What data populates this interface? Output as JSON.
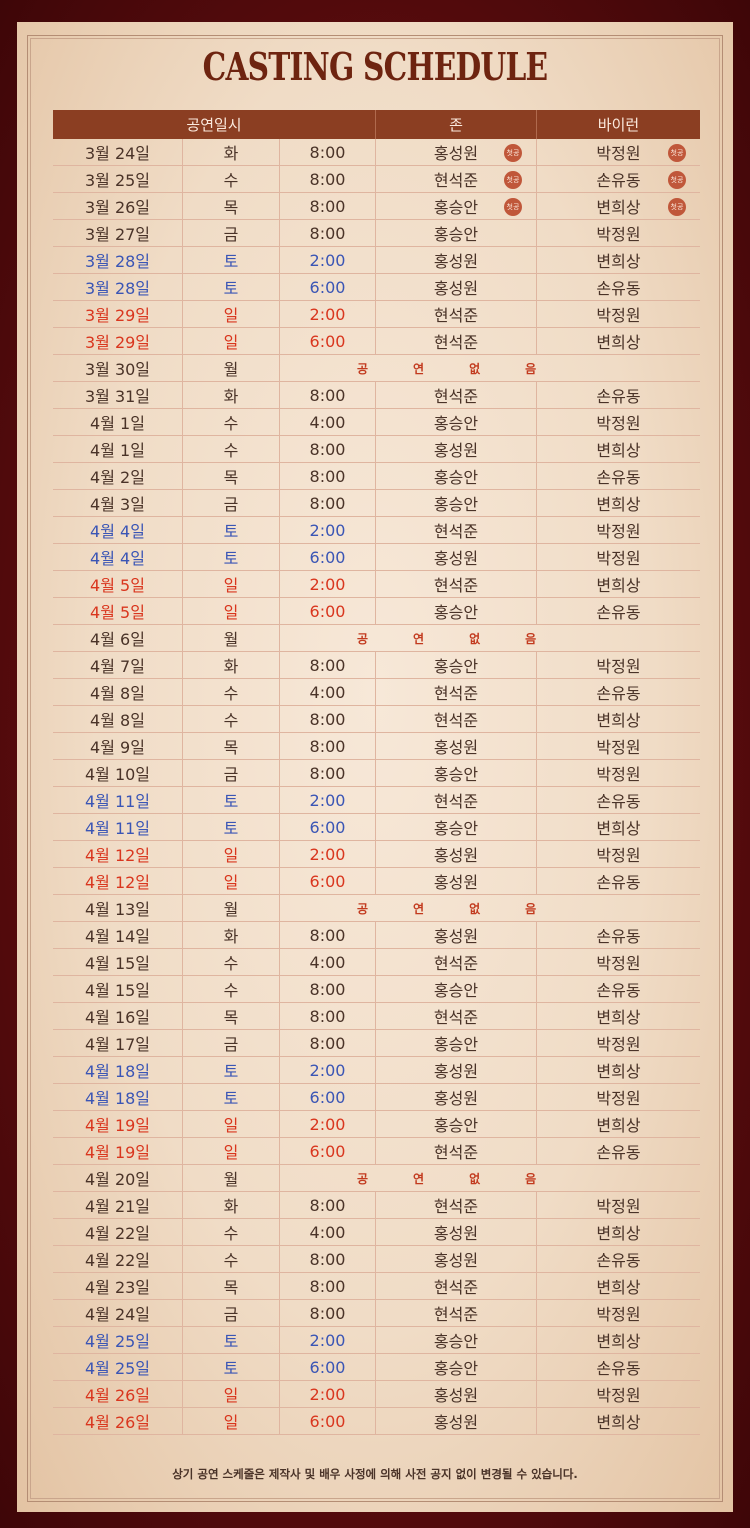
{
  "title": "CASTING SCHEDULE",
  "headers": [
    "공연일시",
    "존",
    "바이런"
  ],
  "no_show_label": "공연없음",
  "premiere_badge": "첫공",
  "colors": {
    "weekday": "#4a3328",
    "saturday": "#3a55b5",
    "sunday": "#d9361e",
    "header_bg": "#8b3e22",
    "badge": "#c0573a"
  },
  "rows": [
    {
      "date": "3월 24일",
      "day": "화",
      "time": "8:00",
      "john": "홍성원",
      "byron": "박정원",
      "premiere": true
    },
    {
      "date": "3월 25일",
      "day": "수",
      "time": "8:00",
      "john": "현석준",
      "byron": "손유동",
      "premiere": true
    },
    {
      "date": "3월 26일",
      "day": "목",
      "time": "8:00",
      "john": "홍승안",
      "byron": "변희상",
      "premiere": true
    },
    {
      "date": "3월 27일",
      "day": "금",
      "time": "8:00",
      "john": "홍승안",
      "byron": "박정원"
    },
    {
      "date": "3월 28일",
      "day": "토",
      "time": "2:00",
      "john": "홍성원",
      "byron": "변희상"
    },
    {
      "date": "3월 28일",
      "day": "토",
      "time": "6:00",
      "john": "홍성원",
      "byron": "손유동"
    },
    {
      "date": "3월 29일",
      "day": "일",
      "time": "2:00",
      "john": "현석준",
      "byron": "박정원"
    },
    {
      "date": "3월 29일",
      "day": "일",
      "time": "6:00",
      "john": "현석준",
      "byron": "변희상"
    },
    {
      "date": "3월 30일",
      "day": "월",
      "none": true
    },
    {
      "date": "3월 31일",
      "day": "화",
      "time": "8:00",
      "john": "현석준",
      "byron": "손유동"
    },
    {
      "date": "4월 1일",
      "day": "수",
      "time": "4:00",
      "john": "홍승안",
      "byron": "박정원"
    },
    {
      "date": "4월 1일",
      "day": "수",
      "time": "8:00",
      "john": "홍성원",
      "byron": "변희상"
    },
    {
      "date": "4월 2일",
      "day": "목",
      "time": "8:00",
      "john": "홍승안",
      "byron": "손유동"
    },
    {
      "date": "4월 3일",
      "day": "금",
      "time": "8:00",
      "john": "홍승안",
      "byron": "변희상"
    },
    {
      "date": "4월 4일",
      "day": "토",
      "time": "2:00",
      "john": "현석준",
      "byron": "박정원"
    },
    {
      "date": "4월 4일",
      "day": "토",
      "time": "6:00",
      "john": "홍성원",
      "byron": "박정원"
    },
    {
      "date": "4월 5일",
      "day": "일",
      "time": "2:00",
      "john": "현석준",
      "byron": "변희상"
    },
    {
      "date": "4월 5일",
      "day": "일",
      "time": "6:00",
      "john": "홍승안",
      "byron": "손유동"
    },
    {
      "date": "4월 6일",
      "day": "월",
      "none": true
    },
    {
      "date": "4월 7일",
      "day": "화",
      "time": "8:00",
      "john": "홍승안",
      "byron": "박정원"
    },
    {
      "date": "4월 8일",
      "day": "수",
      "time": "4:00",
      "john": "현석준",
      "byron": "손유동"
    },
    {
      "date": "4월 8일",
      "day": "수",
      "time": "8:00",
      "john": "현석준",
      "byron": "변희상"
    },
    {
      "date": "4월 9일",
      "day": "목",
      "time": "8:00",
      "john": "홍성원",
      "byron": "박정원"
    },
    {
      "date": "4월 10일",
      "day": "금",
      "time": "8:00",
      "john": "홍승안",
      "byron": "박정원"
    },
    {
      "date": "4월 11일",
      "day": "토",
      "time": "2:00",
      "john": "현석준",
      "byron": "손유동"
    },
    {
      "date": "4월 11일",
      "day": "토",
      "time": "6:00",
      "john": "홍승안",
      "byron": "변희상"
    },
    {
      "date": "4월 12일",
      "day": "일",
      "time": "2:00",
      "john": "홍성원",
      "byron": "박정원"
    },
    {
      "date": "4월 12일",
      "day": "일",
      "time": "6:00",
      "john": "홍성원",
      "byron": "손유동"
    },
    {
      "date": "4월 13일",
      "day": "월",
      "none": true
    },
    {
      "date": "4월 14일",
      "day": "화",
      "time": "8:00",
      "john": "홍성원",
      "byron": "손유동"
    },
    {
      "date": "4월 15일",
      "day": "수",
      "time": "4:00",
      "john": "현석준",
      "byron": "박정원"
    },
    {
      "date": "4월 15일",
      "day": "수",
      "time": "8:00",
      "john": "홍승안",
      "byron": "손유동"
    },
    {
      "date": "4월 16일",
      "day": "목",
      "time": "8:00",
      "john": "현석준",
      "byron": "변희상"
    },
    {
      "date": "4월 17일",
      "day": "금",
      "time": "8:00",
      "john": "홍승안",
      "byron": "박정원"
    },
    {
      "date": "4월 18일",
      "day": "토",
      "time": "2:00",
      "john": "홍성원",
      "byron": "변희상"
    },
    {
      "date": "4월 18일",
      "day": "토",
      "time": "6:00",
      "john": "홍성원",
      "byron": "박정원"
    },
    {
      "date": "4월 19일",
      "day": "일",
      "time": "2:00",
      "john": "홍승안",
      "byron": "변희상"
    },
    {
      "date": "4월 19일",
      "day": "일",
      "time": "6:00",
      "john": "현석준",
      "byron": "손유동"
    },
    {
      "date": "4월 20일",
      "day": "월",
      "none": true
    },
    {
      "date": "4월 21일",
      "day": "화",
      "time": "8:00",
      "john": "현석준",
      "byron": "박정원"
    },
    {
      "date": "4월 22일",
      "day": "수",
      "time": "4:00",
      "john": "홍성원",
      "byron": "변희상"
    },
    {
      "date": "4월 22일",
      "day": "수",
      "time": "8:00",
      "john": "홍성원",
      "byron": "손유동"
    },
    {
      "date": "4월 23일",
      "day": "목",
      "time": "8:00",
      "john": "현석준",
      "byron": "변희상"
    },
    {
      "date": "4월 24일",
      "day": "금",
      "time": "8:00",
      "john": "현석준",
      "byron": "박정원"
    },
    {
      "date": "4월 25일",
      "day": "토",
      "time": "2:00",
      "john": "홍승안",
      "byron": "변희상"
    },
    {
      "date": "4월 25일",
      "day": "토",
      "time": "6:00",
      "john": "홍승안",
      "byron": "손유동"
    },
    {
      "date": "4월 26일",
      "day": "일",
      "time": "2:00",
      "john": "홍성원",
      "byron": "박정원"
    },
    {
      "date": "4월 26일",
      "day": "일",
      "time": "6:00",
      "john": "홍성원",
      "byron": "변희상"
    }
  ],
  "notice": "상기 공연 스케줄은 제작사 및 배우 사정에 의해 사전 공지 없이 변경될 수 있습니다."
}
